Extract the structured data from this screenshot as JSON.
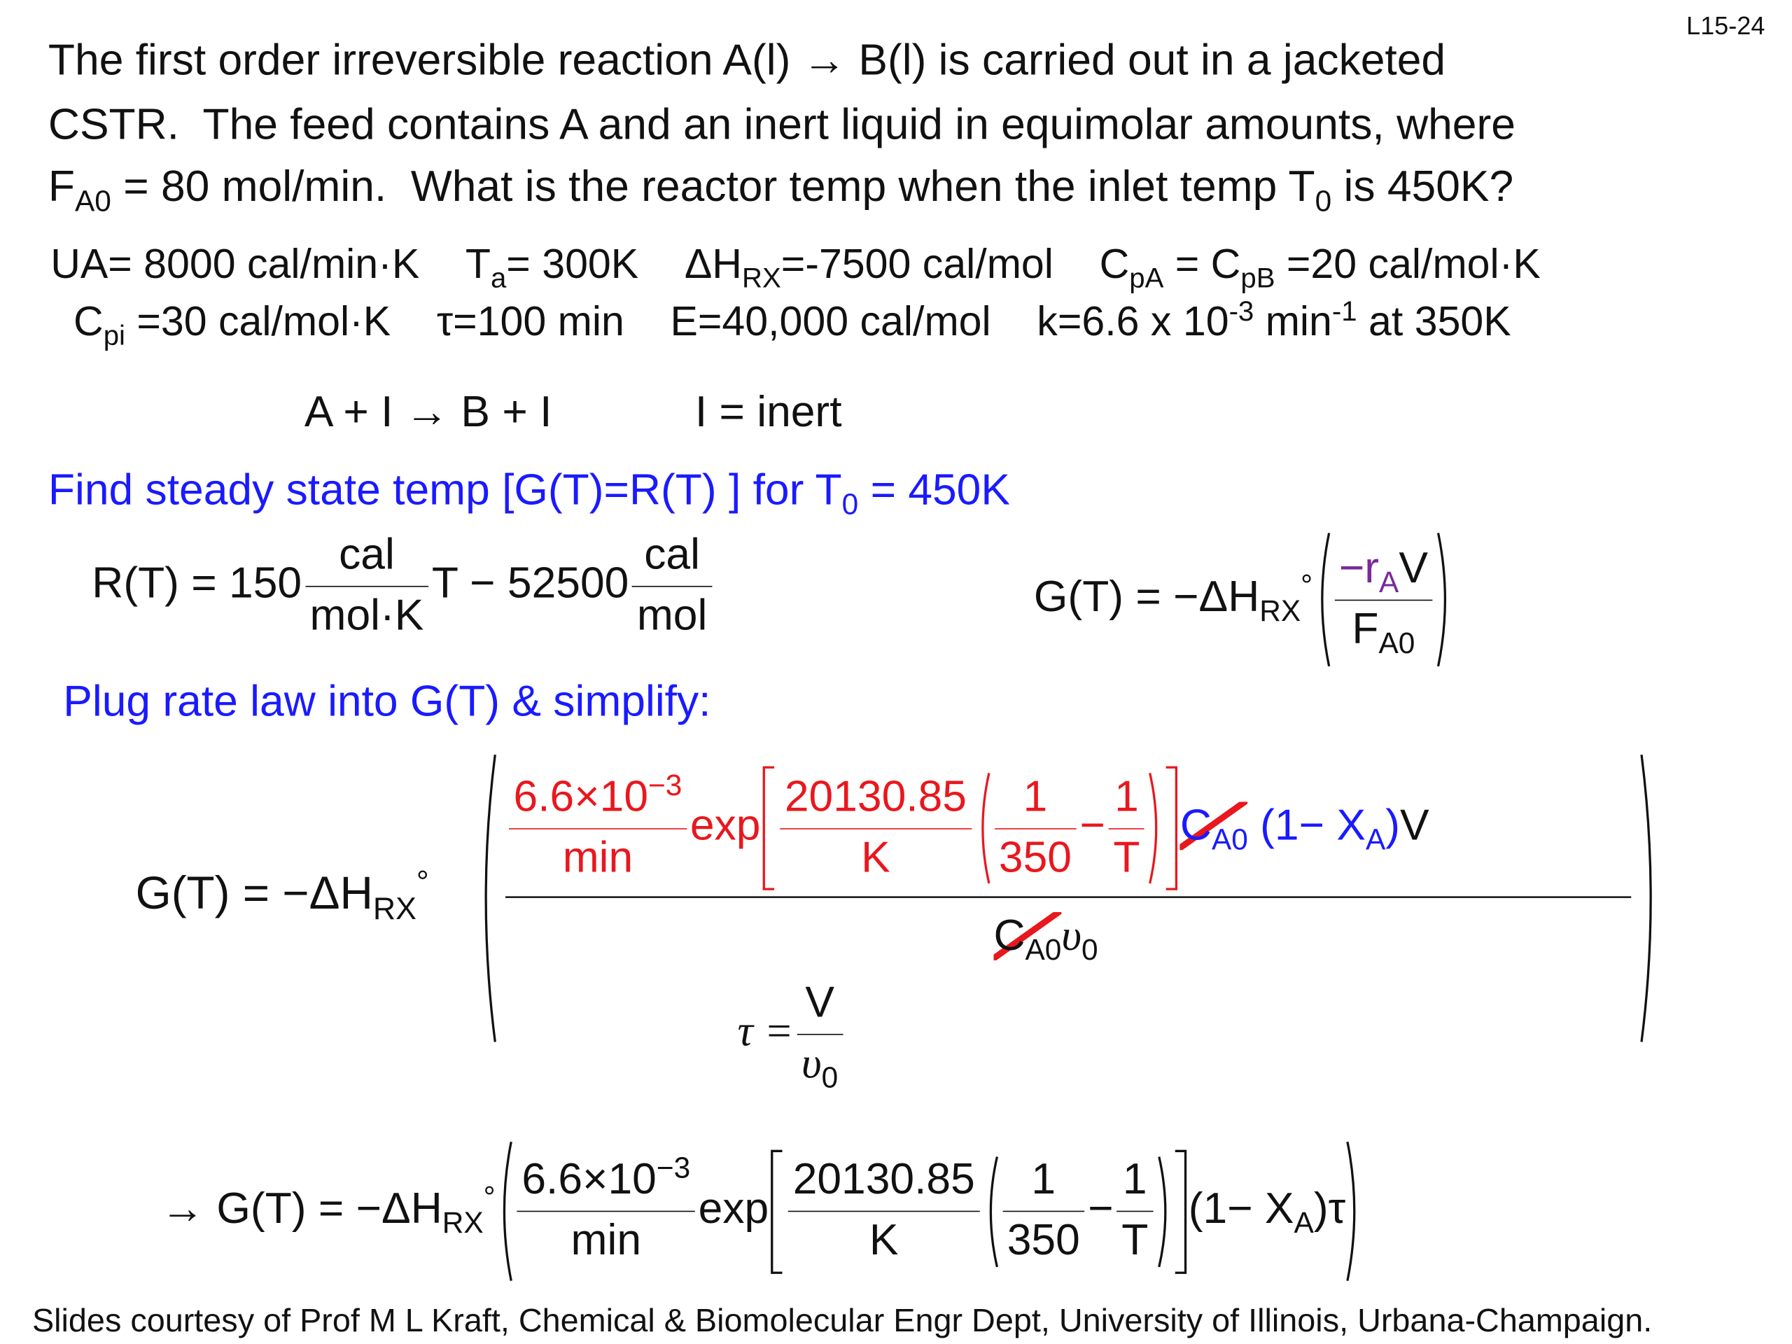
{
  "slide_number": "L15-24",
  "problem": {
    "line1": "The first order irreversible reaction A(l) → B(l) is carried out in a jacketed",
    "line2": "CSTR.  The feed contains A and an inert liquid in equimolar amounts, where",
    "line3": [
      "F",
      "A0",
      " = 80 mol/min.  What is the reactor temp when the inlet temp T",
      "0",
      " is 450K?"
    ]
  },
  "parameters": {
    "row1": [
      "UA= 8000 cal/min·K",
      "T",
      "a",
      "= 300K",
      "ΔH",
      "RX",
      "=-7500 cal/mol",
      "C",
      "pA",
      " = C",
      "pB",
      " =20 cal/mol·K"
    ],
    "row2": [
      "C",
      "pi",
      " =30 cal/mol·K",
      "τ=100 min",
      "E=40,000 cal/mol",
      "k=6.6 x 10",
      "-3",
      " min",
      "-1",
      " at 350K"
    ]
  },
  "reaction": {
    "equation": "A + I → B + I",
    "note": "I = inert"
  },
  "heading1": [
    "Find steady state temp [G(T)=R(T) ] for T",
    "0",
    " = 450K"
  ],
  "r_equation": {
    "lhs": "R(T) = 150",
    "frac1": [
      "cal",
      "mol·K"
    ],
    "mid": "T − 52500",
    "frac2": [
      "cal",
      "mol"
    ]
  },
  "g_equation": {
    "lhs": [
      "G(T) = −ΔH",
      "RX",
      "°"
    ],
    "numerator": [
      "−r",
      "A",
      "V"
    ],
    "denominator": [
      "F",
      "A0"
    ]
  },
  "heading2": "Plug rate law into G(T) & simplify:",
  "big_equation": {
    "lhs": [
      "G(T) = −ΔH",
      "RX",
      "°"
    ],
    "rate": [
      "6.6×10",
      "−3",
      "min"
    ],
    "exp": "exp",
    "energy": [
      "20130.85",
      "K"
    ],
    "inv1": [
      "1",
      "350"
    ],
    "minus": "−",
    "inv2": [
      "1",
      "T"
    ],
    "conc": [
      "C",
      "A0"
    ],
    "conversion": [
      "(1− X",
      "A",
      ")"
    ],
    "volume": "V",
    "denominator": [
      "C",
      "A0",
      "υ",
      "0"
    ]
  },
  "tau_equation": {
    "lhs": "τ =",
    "numerator": "V",
    "denominator": [
      "υ",
      "0"
    ]
  },
  "final_equation": {
    "lhs": [
      "→ G(T) = −ΔH",
      "RX",
      "°"
    ],
    "rate": [
      "6.6×10",
      "−3",
      "min"
    ],
    "exp": "exp",
    "energy": [
      "20130.85",
      "K"
    ],
    "inv1": [
      "1",
      "350"
    ],
    "minus": "−",
    "inv2": [
      "1",
      "T"
    ],
    "tail": [
      "(1− X",
      "A",
      ")τ"
    ]
  },
  "footer": "Slides courtesy of Prof M L Kraft, Chemical & Biomolecular Engr Dept, University of Illinois, Urbana-Champaign."
}
